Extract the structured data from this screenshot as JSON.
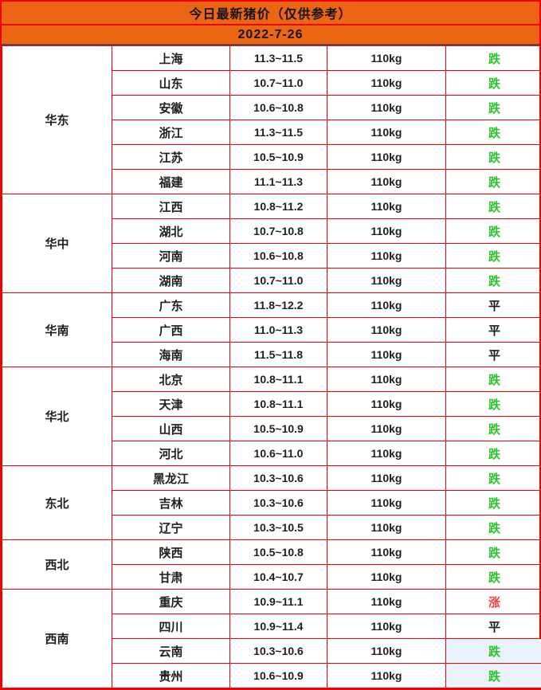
{
  "header": {
    "title": "今日最新猪价（仅供参考）",
    "date": "2022-7-26"
  },
  "colors": {
    "header_bg": "#EB6514",
    "border_red": "#F40000",
    "title_divider": "#E30B0B",
    "dark_divider": "#4D4D4D",
    "status_down": "#2DC42D",
    "status_up": "#FA3E3E",
    "status_flat": "#1A1A1A",
    "status_highlight_bg": "#E9F1FA",
    "text": "#1F1F1F"
  },
  "groups": [
    {
      "region": "华东",
      "rows": [
        {
          "province": "上海",
          "price": "11.3~11.5",
          "weight": "110kg",
          "status": "跌",
          "trend": "down",
          "highlight": false
        },
        {
          "province": "山东",
          "price": "10.7~11.0",
          "weight": "110kg",
          "status": "跌",
          "trend": "down",
          "highlight": false
        },
        {
          "province": "安徽",
          "price": "10.6~10.8",
          "weight": "110kg",
          "status": "跌",
          "trend": "down",
          "highlight": false
        },
        {
          "province": "浙江",
          "price": "11.3~11.5",
          "weight": "110kg",
          "status": "跌",
          "trend": "down",
          "highlight": false
        },
        {
          "province": "江苏",
          "price": "10.5~10.9",
          "weight": "110kg",
          "status": "跌",
          "trend": "down",
          "highlight": false
        },
        {
          "province": "福建",
          "price": "11.1~11.3",
          "weight": "110kg",
          "status": "跌",
          "trend": "down",
          "highlight": false
        }
      ]
    },
    {
      "region": "华中",
      "rows": [
        {
          "province": "江西",
          "price": "10.8~11.2",
          "weight": "110kg",
          "status": "跌",
          "trend": "down",
          "highlight": false
        },
        {
          "province": "湖北",
          "price": "10.7~10.8",
          "weight": "110kg",
          "status": "跌",
          "trend": "down",
          "highlight": false
        },
        {
          "province": "河南",
          "price": "10.6~10.8",
          "weight": "110kg",
          "status": "跌",
          "trend": "down",
          "highlight": false
        },
        {
          "province": "湖南",
          "price": "10.7~11.0",
          "weight": "110kg",
          "status": "跌",
          "trend": "down",
          "highlight": false
        }
      ]
    },
    {
      "region": "华南",
      "rows": [
        {
          "province": "广东",
          "price": "11.8~12.2",
          "weight": "110kg",
          "status": "平",
          "trend": "flat",
          "highlight": false
        },
        {
          "province": "广西",
          "price": "11.0~11.3",
          "weight": "110kg",
          "status": "平",
          "trend": "flat",
          "highlight": false
        },
        {
          "province": "海南",
          "price": "11.5~11.8",
          "weight": "110kg",
          "status": "平",
          "trend": "flat",
          "highlight": false
        }
      ]
    },
    {
      "region": "华北",
      "rows": [
        {
          "province": "北京",
          "price": "10.8~11.1",
          "weight": "110kg",
          "status": "跌",
          "trend": "down",
          "highlight": false
        },
        {
          "province": "天津",
          "price": "10.8~11.1",
          "weight": "110kg",
          "status": "跌",
          "trend": "down",
          "highlight": false
        },
        {
          "province": "山西",
          "price": "10.5~10.9",
          "weight": "110kg",
          "status": "跌",
          "trend": "down",
          "highlight": false
        },
        {
          "province": "河北",
          "price": "10.6~11.0",
          "weight": "110kg",
          "status": "跌",
          "trend": "down",
          "highlight": false
        }
      ]
    },
    {
      "region": "东北",
      "rows": [
        {
          "province": "黑龙江",
          "price": "10.3~10.6",
          "weight": "110kg",
          "status": "跌",
          "trend": "down",
          "highlight": false
        },
        {
          "province": "吉林",
          "price": "10.3~10.6",
          "weight": "110kg",
          "status": "跌",
          "trend": "down",
          "highlight": false
        },
        {
          "province": "辽宁",
          "price": "10.3~10.5",
          "weight": "110kg",
          "status": "跌",
          "trend": "down",
          "highlight": false
        }
      ]
    },
    {
      "region": "西北",
      "rows": [
        {
          "province": "陕西",
          "price": "10.5~10.8",
          "weight": "110kg",
          "status": "跌",
          "trend": "down",
          "highlight": false
        },
        {
          "province": "甘肃",
          "price": "10.4~10.7",
          "weight": "110kg",
          "status": "跌",
          "trend": "down",
          "highlight": false
        }
      ]
    },
    {
      "region": "西南",
      "rows": [
        {
          "province": "重庆",
          "price": "10.9~11.1",
          "weight": "110kg",
          "status": "涨",
          "trend": "up",
          "highlight": false
        },
        {
          "province": "四川",
          "price": "10.9~11.4",
          "weight": "110kg",
          "status": "平",
          "trend": "flat",
          "highlight": false
        },
        {
          "province": "云南",
          "price": "10.3~10.6",
          "weight": "110kg",
          "status": "跌",
          "trend": "down",
          "highlight": true
        },
        {
          "province": "贵州",
          "price": "10.6~10.9",
          "weight": "110kg",
          "status": "跌",
          "trend": "down",
          "highlight": true
        }
      ]
    }
  ]
}
